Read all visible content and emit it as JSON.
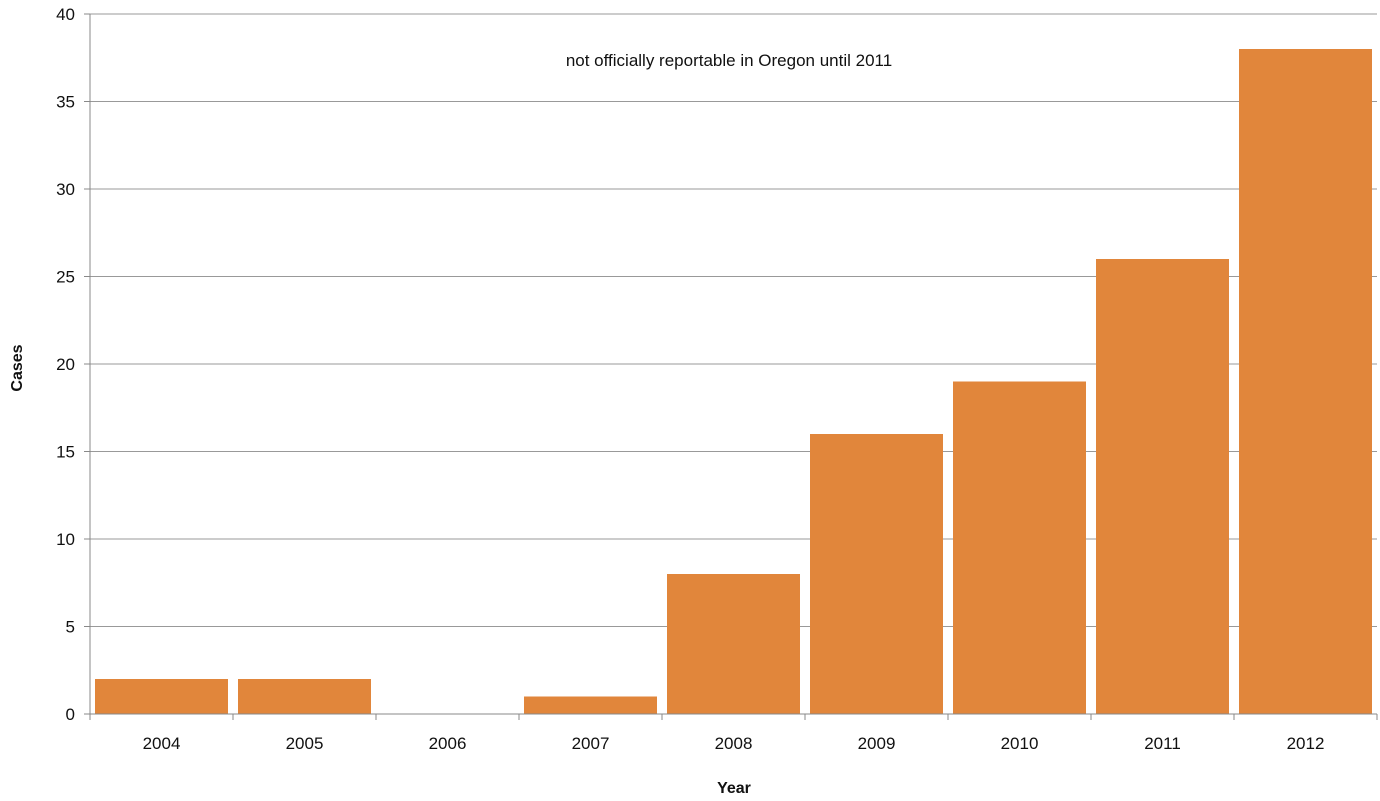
{
  "chart_data": {
    "type": "bar",
    "categories": [
      "2004",
      "2005",
      "2006",
      "2007",
      "2008",
      "2009",
      "2010",
      "2011",
      "2012"
    ],
    "values": [
      2,
      2,
      0,
      1,
      8,
      16,
      19,
      26,
      38
    ],
    "xlabel": "Year",
    "ylabel": "Cases",
    "ylim": [
      0,
      40
    ],
    "yticks": [
      0,
      5,
      10,
      15,
      20,
      25,
      30,
      35,
      40
    ],
    "grid": true,
    "legend": "none",
    "annotation": "not officially reportable in Oregon until 2011",
    "colors": {
      "bar": "#e1863b",
      "grid": "#999999",
      "axis": "#888888"
    }
  }
}
